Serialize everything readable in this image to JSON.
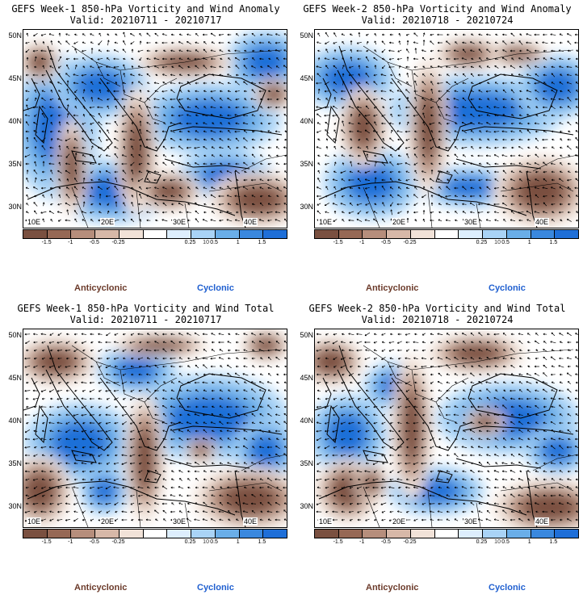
{
  "panels": [
    {
      "title_line1": "GEFS Week-1 850-hPa Vorticity and Wind Anomaly",
      "title_line2": "Valid: 20210711 - 20210717",
      "variant": 0
    },
    {
      "title_line1": "GEFS Week-2 850-hPa Vorticity and Wind Anomaly",
      "title_line2": "Valid: 20210718 - 20210724",
      "variant": 1
    },
    {
      "title_line1": "GEFS Week-1 850-hPa Vorticity and Wind Total",
      "title_line2": "Valid: 20210711 - 20210717",
      "variant": 2
    },
    {
      "title_line1": "GEFS Week-2 850-hPa Vorticity and Wind Total",
      "title_line2": "Valid: 20210718 - 20210724",
      "variant": 3
    }
  ],
  "lat_labels": [
    "50N",
    "45N",
    "40N",
    "35N",
    "30N"
  ],
  "lon_labels": [
    "10E",
    "20E",
    "30E",
    "40E"
  ],
  "colorbar": {
    "labels": [
      "-1.5",
      "-1",
      "-0.5",
      "-0.25",
      "0.25",
      "0.5",
      "1",
      "1.5"
    ],
    "scale_mark": "10",
    "colors": [
      "#7a5040",
      "#966855",
      "#b68e7c",
      "#d7b8a8",
      "#f1e2d8",
      "#ffffff",
      "#ddeefd",
      "#a9d3f6",
      "#6aaee8",
      "#3a88de",
      "#1f6fd8"
    ]
  },
  "legend": {
    "anticyclonic": "Anticyclonic",
    "cyclonic": "Cyclonic",
    "anticyclonic_color": "#6b3a2a",
    "cyclonic_color": "#1f5fd0"
  }
}
